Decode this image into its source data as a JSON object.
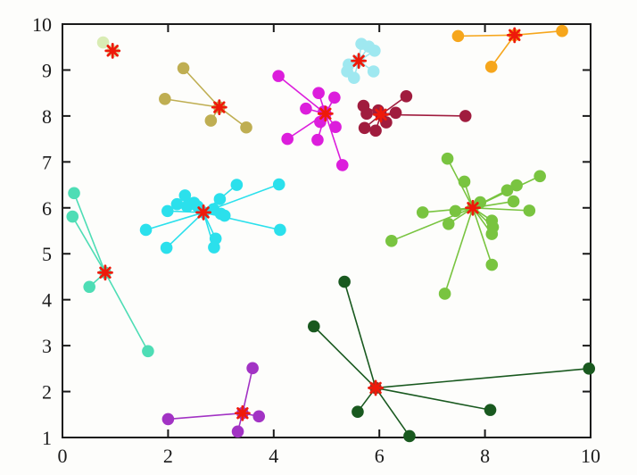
{
  "figure": {
    "background": "#fdfdfb",
    "axis_color": "#1a1a1a",
    "tick_label_color": "#1a1a1a"
  },
  "chart_data": {
    "type": "scatter",
    "title": "",
    "subtitle": "",
    "xlabel": "",
    "ylabel": "",
    "xlim": [
      0,
      10
    ],
    "ylim": [
      1,
      10
    ],
    "xticks": [
      0,
      2,
      4,
      6,
      8,
      10
    ],
    "yticks": [
      1,
      2,
      3,
      4,
      5,
      6,
      7,
      8,
      9,
      10
    ],
    "grid": false,
    "legend": null,
    "description": "Clustering result scatter plot: 11 color-coded clusters; each point is joined by a line to its cluster centroid, marked with a red asterisk",
    "centroid_marker": {
      "shape": "asterisk",
      "color": "#ee1a0a",
      "arm_length": 7.5,
      "arm_width": 2.8
    },
    "point_radius": 6.8,
    "edge_width": 1.6,
    "clusters": [
      {
        "name": "pale-green",
        "color": "#d9ecb4",
        "centroid": [
          0.95,
          9.42
        ],
        "points": [
          [
            0.77,
            9.6
          ],
          [
            0.97,
            9.41
          ]
        ]
      },
      {
        "name": "olive",
        "color": "#bfae52",
        "centroid": [
          2.97,
          8.19
        ],
        "points": [
          [
            2.29,
            9.04
          ],
          [
            1.94,
            8.37
          ],
          [
            2.81,
            7.9
          ],
          [
            3.48,
            7.75
          ]
        ]
      },
      {
        "name": "magenta",
        "color": "#dc1edc",
        "centroid": [
          4.98,
          8.05
        ],
        "points": [
          [
            4.09,
            8.87
          ],
          [
            4.85,
            8.5
          ],
          [
            5.15,
            8.4
          ],
          [
            4.61,
            8.16
          ],
          [
            4.95,
            8.1
          ],
          [
            4.88,
            7.87
          ],
          [
            5.17,
            7.76
          ],
          [
            4.26,
            7.5
          ],
          [
            4.83,
            7.48
          ],
          [
            5.3,
            6.93
          ]
        ]
      },
      {
        "name": "bright-cyan",
        "color": "#2be0ec",
        "centroid": [
          2.67,
          5.9
        ],
        "points": [
          [
            3.3,
            6.5
          ],
          [
            4.1,
            6.51
          ],
          [
            2.32,
            6.27
          ],
          [
            2.49,
            6.11
          ],
          [
            2.17,
            6.08
          ],
          [
            2.36,
            6.03
          ],
          [
            2.56,
            6.03
          ],
          [
            2.98,
            6.19
          ],
          [
            1.99,
            5.93
          ],
          [
            2.86,
            5.97
          ],
          [
            3.0,
            5.87
          ],
          [
            3.07,
            5.83
          ],
          [
            1.58,
            5.52
          ],
          [
            4.12,
            5.52
          ],
          [
            2.9,
            5.33
          ],
          [
            2.87,
            5.14
          ],
          [
            1.97,
            5.13
          ]
        ]
      },
      {
        "name": "aquamarine",
        "color": "#4eddb5",
        "centroid": [
          0.81,
          4.59
        ],
        "points": [
          [
            0.22,
            6.32
          ],
          [
            0.19,
            5.81
          ],
          [
            0.51,
            4.28
          ],
          [
            1.62,
            2.88
          ]
        ]
      },
      {
        "name": "pale-cyan",
        "color": "#9fe8f0",
        "centroid": [
          5.61,
          9.2
        ],
        "points": [
          [
            5.66,
            9.57
          ],
          [
            5.8,
            9.51
          ],
          [
            5.91,
            9.42
          ],
          [
            5.42,
            9.12
          ],
          [
            5.39,
            8.97
          ],
          [
            5.89,
            8.97
          ],
          [
            5.52,
            8.83
          ]
        ]
      },
      {
        "name": "orange",
        "color": "#f6a61c",
        "centroid": [
          8.56,
          9.76
        ],
        "points": [
          [
            7.49,
            9.74
          ],
          [
            9.46,
            9.85
          ],
          [
            8.12,
            9.07
          ]
        ]
      },
      {
        "name": "maroon",
        "color": "#a01c3e",
        "centroid": [
          6.03,
          8.03
        ],
        "points": [
          [
            6.51,
            8.43
          ],
          [
            5.7,
            8.22
          ],
          [
            5.98,
            8.12
          ],
          [
            6.31,
            8.07
          ],
          [
            5.76,
            8.05
          ],
          [
            6.13,
            7.86
          ],
          [
            5.72,
            7.74
          ],
          [
            5.93,
            7.68
          ],
          [
            7.63,
            8.0
          ]
        ]
      },
      {
        "name": "light-green",
        "color": "#79c440",
        "centroid": [
          7.77,
          6.0
        ],
        "points": [
          [
            7.29,
            7.07
          ],
          [
            9.04,
            6.69
          ],
          [
            7.61,
            6.57
          ],
          [
            8.6,
            6.49
          ],
          [
            8.42,
            6.38
          ],
          [
            8.54,
            6.14
          ],
          [
            7.91,
            6.12
          ],
          [
            8.84,
            5.94
          ],
          [
            7.44,
            5.93
          ],
          [
            6.82,
            5.9
          ],
          [
            8.13,
            5.72
          ],
          [
            7.31,
            5.65
          ],
          [
            8.15,
            5.58
          ],
          [
            8.13,
            5.43
          ],
          [
            6.23,
            5.28
          ],
          [
            8.13,
            4.76
          ],
          [
            7.24,
            4.13
          ]
        ]
      },
      {
        "name": "purple",
        "color": "#a233c4",
        "centroid": [
          3.41,
          1.53
        ],
        "points": [
          [
            3.6,
            2.51
          ],
          [
            2.0,
            1.4
          ],
          [
            3.72,
            1.46
          ],
          [
            3.32,
            1.13
          ]
        ]
      },
      {
        "name": "dark-green",
        "color": "#19591f",
        "centroid": [
          5.93,
          2.08
        ],
        "centroid_fill": "#8b3a26",
        "points": [
          [
            5.34,
            4.39
          ],
          [
            4.76,
            3.42
          ],
          [
            5.59,
            1.56
          ],
          [
            6.57,
            1.03
          ],
          [
            8.1,
            1.6
          ],
          [
            9.97,
            2.5
          ]
        ]
      }
    ]
  }
}
